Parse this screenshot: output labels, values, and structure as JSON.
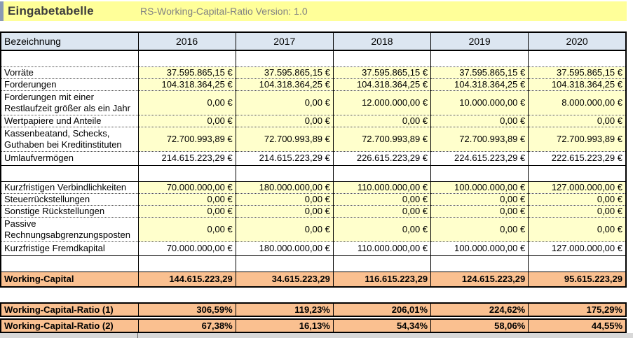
{
  "header": {
    "title": "Eingabetabelle",
    "subtitle": "RS-Working-Capital-Ratio Version:  1.0"
  },
  "table": {
    "label_header": "Bezeichnung",
    "years": [
      "2016",
      "2017",
      "2018",
      "2019",
      "2020"
    ],
    "rows": [
      {
        "kind": "spacer"
      },
      {
        "kind": "input",
        "label": "Vorräte",
        "values": [
          "37.595.865,15 €",
          "37.595.865,15 €",
          "37.595.865,15 €",
          "37.595.865,15 €",
          "37.595.865,15 €"
        ]
      },
      {
        "kind": "input",
        "label": "Forderungen",
        "values": [
          "104.318.364,25 €",
          "104.318.364,25 €",
          "104.318.364,25 €",
          "104.318.364,25 €",
          "104.318.364,25 €"
        ]
      },
      {
        "kind": "input",
        "tall": true,
        "label": "Forderungen mit einer Restlaufzeit größer als ein Jahr",
        "values": [
          "0,00 €",
          "0,00 €",
          "12.000.000,00 €",
          "10.000.000,00 €",
          "8.000.000,00 €"
        ]
      },
      {
        "kind": "input",
        "label": "Wertpapiere und Anteile",
        "values": [
          "0,00 €",
          "0,00 €",
          "0,00 €",
          "0,00 €",
          "0,00 €"
        ]
      },
      {
        "kind": "input",
        "tall": true,
        "label": "Kassenbeatand, Schecks, Guthaben bei Kreditinstituten",
        "values": [
          "72.700.993,89 €",
          "72.700.993,89 €",
          "72.700.993,89 €",
          "72.700.993,89 €",
          "72.700.993,89 €"
        ]
      },
      {
        "kind": "sum",
        "label": "Umlaufvermögen",
        "values": [
          "214.615.223,29 €",
          "214.615.223,29 €",
          "226.615.223,29 €",
          "224.615.223,29 €",
          "222.615.223,29 €"
        ]
      },
      {
        "kind": "spacer"
      },
      {
        "kind": "input",
        "label": "Kurzfristigen Verbindlichkeiten",
        "values": [
          "70.000.000,00 €",
          "180.000.000,00 €",
          "110.000.000,00 €",
          "100.000.000,00 €",
          "127.000.000,00 €"
        ]
      },
      {
        "kind": "input",
        "label": "Steuerrückstellungen",
        "values": [
          "0,00 €",
          "0,00 €",
          "0,00 €",
          "0,00 €",
          "0,00 €"
        ]
      },
      {
        "kind": "input",
        "label": "Sonstige Rückstellungen",
        "values": [
          "0,00 €",
          "0,00 €",
          "0,00 €",
          "0,00 €",
          "0,00 €"
        ]
      },
      {
        "kind": "input",
        "tall": true,
        "label": "Passive Rechnungsabgrenzungsposten",
        "values": [
          "0,00 €",
          "0,00 €",
          "0,00 €",
          "0,00 €",
          "0,00 €"
        ]
      },
      {
        "kind": "sum",
        "label": "Kurzfristige Fremdkapital",
        "values": [
          "70.000.000,00 €",
          "180.000.000,00 €",
          "110.000.000,00 €",
          "100.000.000,00 €",
          "127.000.000,00 €"
        ]
      },
      {
        "kind": "spacer"
      },
      {
        "kind": "result",
        "label": "Working-Capital",
        "values": [
          "144.615.223,29",
          "34.615.223,29",
          "116.615.223,29",
          "124.615.223,29",
          "95.615.223,29"
        ]
      }
    ]
  },
  "ratios": [
    {
      "label": "Working-Capital-Ratio (1)",
      "values": [
        "306,59%",
        "119,23%",
        "206,01%",
        "224,62%",
        "175,29%"
      ]
    },
    {
      "label": "Working-Capital-Ratio (2)",
      "values": [
        "67,38%",
        "16,13%",
        "54,34%",
        "58,06%",
        "44,55%"
      ]
    }
  ],
  "colors": {
    "title_bg": "#ffff99",
    "accent_bar": "#8a99b5",
    "header_row_bg": "#dce6f1",
    "input_cell_bg": "#ffffcc",
    "result_row_bg": "#fac090",
    "grid_border": "#000000"
  }
}
